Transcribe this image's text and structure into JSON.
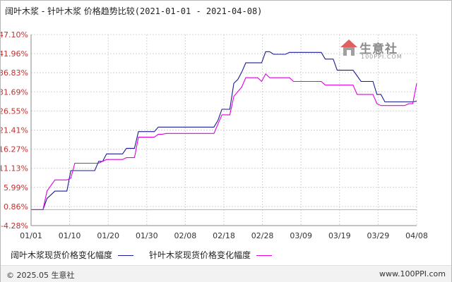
{
  "header": {
    "title_main": "阔叶木浆 - 针叶木浆 价格趋势比较",
    "title_range": "(2021-01-01 - 2021-04-08)"
  },
  "logo": {
    "name": "生意社",
    "url": "100PPI.COM"
  },
  "footer": {
    "copyright": "© 2025.05 生意社",
    "site": "www.100PPI.com"
  },
  "colors": {
    "series_1": "#1a1a9a",
    "series_2": "#e000e0",
    "ytick": "#c03030",
    "grid": "#d4d4d4"
  },
  "chart_data": {
    "type": "line",
    "title": "阔叶木浆 - 针叶木浆 价格趋势比较(2021-01-01 - 2021-04-08)",
    "xlabel": "",
    "ylabel": "",
    "x_ticks": [
      "01/01",
      "01/10",
      "01/20",
      "01/30",
      "02/08",
      "02/18",
      "02/28",
      "03/09",
      "03/19",
      "03/29",
      "04/08"
    ],
    "y_ticks": [
      "-4.28%",
      "0.86%",
      "5.99%",
      "11.13%",
      "16.27%",
      "21.41%",
      "26.55%",
      "31.69%",
      "36.83%",
      "41.96%",
      "47.10%"
    ],
    "ylim": [
      -4.28,
      47.1
    ],
    "x_range": [
      "2021-01-01",
      "2021-04-08"
    ],
    "grid": true,
    "legend_position": "bottom-left",
    "series": [
      {
        "name": "阔叶木浆现货价格变化幅度",
        "points": [
          [
            "2021-01-01",
            0
          ],
          [
            "2021-01-04",
            0
          ],
          [
            "2021-01-05",
            3
          ],
          [
            "2021-01-07",
            5
          ],
          [
            "2021-01-10",
            5
          ],
          [
            "2021-01-11",
            10.5
          ],
          [
            "2021-01-17",
            10.5
          ],
          [
            "2021-01-18",
            13
          ],
          [
            "2021-01-19",
            13
          ],
          [
            "2021-01-20",
            15
          ],
          [
            "2021-01-24",
            15
          ],
          [
            "2021-01-25",
            16.5
          ],
          [
            "2021-01-27",
            16.5
          ],
          [
            "2021-01-28",
            21
          ],
          [
            "2021-02-01",
            21
          ],
          [
            "2021-02-02",
            22.2
          ],
          [
            "2021-02-16",
            22.2
          ],
          [
            "2021-02-17",
            24
          ],
          [
            "2021-02-18",
            27
          ],
          [
            "2021-02-20",
            27
          ],
          [
            "2021-02-21",
            34
          ],
          [
            "2021-02-22",
            35
          ],
          [
            "2021-02-23",
            37
          ],
          [
            "2021-02-24",
            39.5
          ],
          [
            "2021-02-28",
            39.5
          ],
          [
            "2021-03-01",
            42.5
          ],
          [
            "2021-03-02",
            42.5
          ],
          [
            "2021-03-03",
            41.8
          ],
          [
            "2021-03-06",
            41.8
          ],
          [
            "2021-03-07",
            42.3
          ],
          [
            "2021-03-15",
            42.3
          ],
          [
            "2021-03-16",
            40.5
          ],
          [
            "2021-03-18",
            40.5
          ],
          [
            "2021-03-19",
            37.5
          ],
          [
            "2021-03-23",
            37.5
          ],
          [
            "2021-03-24",
            36
          ],
          [
            "2021-03-25",
            34.5
          ],
          [
            "2021-03-28",
            34.5
          ],
          [
            "2021-03-29",
            31
          ],
          [
            "2021-03-30",
            31
          ],
          [
            "2021-03-31",
            29
          ],
          [
            "2021-04-07",
            29
          ],
          [
            "2021-04-08",
            29.2
          ]
        ]
      },
      {
        "name": "针叶木浆现货价格变化幅度",
        "points": [
          [
            "2021-01-01",
            0
          ],
          [
            "2021-01-04",
            0
          ],
          [
            "2021-01-05",
            5
          ],
          [
            "2021-01-07",
            8
          ],
          [
            "2021-01-10",
            8
          ],
          [
            "2021-01-11",
            8.5
          ],
          [
            "2021-01-12",
            12.5
          ],
          [
            "2021-01-18",
            12.5
          ],
          [
            "2021-01-20",
            13.5
          ],
          [
            "2021-01-24",
            13.5
          ],
          [
            "2021-01-25",
            14
          ],
          [
            "2021-01-27",
            14
          ],
          [
            "2021-01-28",
            19.5
          ],
          [
            "2021-02-01",
            19.5
          ],
          [
            "2021-02-02",
            20.3
          ],
          [
            "2021-02-03",
            20.3
          ],
          [
            "2021-02-04",
            20.5
          ],
          [
            "2021-02-16",
            20.5
          ],
          [
            "2021-02-18",
            25.5
          ],
          [
            "2021-02-20",
            25.5
          ],
          [
            "2021-02-21",
            30.5
          ],
          [
            "2021-02-23",
            33
          ],
          [
            "2021-02-24",
            35.5
          ],
          [
            "2021-02-27",
            35.5
          ],
          [
            "2021-02-28",
            34.5
          ],
          [
            "2021-03-01",
            36.5
          ],
          [
            "2021-03-02",
            35.5
          ],
          [
            "2021-03-07",
            35.5
          ],
          [
            "2021-03-08",
            34.5
          ],
          [
            "2021-03-15",
            34.5
          ],
          [
            "2021-03-16",
            33.5
          ],
          [
            "2021-03-23",
            33.5
          ],
          [
            "2021-03-24",
            31
          ],
          [
            "2021-03-28",
            31
          ],
          [
            "2021-03-29",
            28.5
          ],
          [
            "2021-03-30",
            28
          ],
          [
            "2021-04-05",
            28
          ],
          [
            "2021-04-06",
            28.5
          ],
          [
            "2021-04-07",
            28.5
          ],
          [
            "2021-04-08",
            34
          ]
        ]
      }
    ]
  }
}
